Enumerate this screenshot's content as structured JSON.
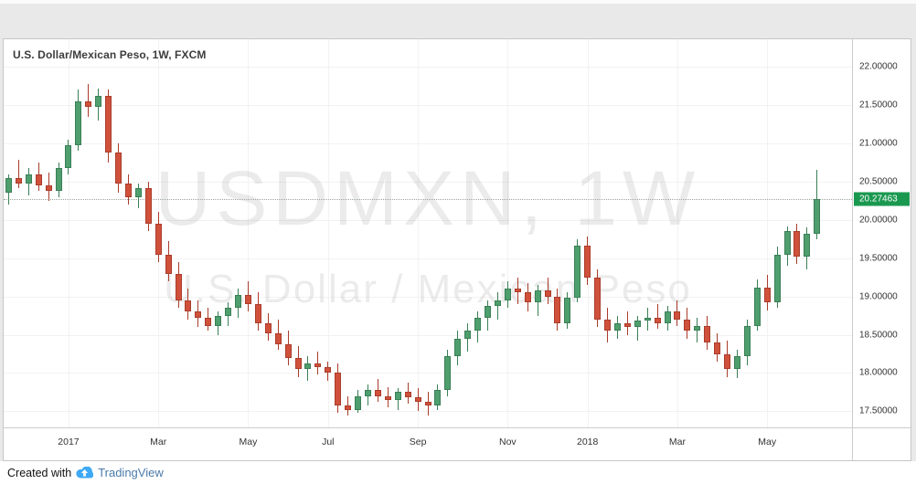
{
  "chart": {
    "title": "U.S. Dollar/Mexican Peso, 1W, FXCM",
    "watermark_line1": "USDMXN, 1W",
    "watermark_line2": "U.S. Dollar / Mexican Peso",
    "last_price_label": "20.27463",
    "colors": {
      "up": "#4f9e6e",
      "up_border": "#3a7f56",
      "down": "#d0513b",
      "down_border": "#a93c2b",
      "badge_bg": "#1a9850",
      "grid": "#f2f2f2",
      "axis_text": "#333333",
      "watermark": "rgba(0,0,0,0.08)"
    }
  },
  "chart_data": {
    "type": "candlestick",
    "symbol": "USDMXN",
    "timeframe": "1W",
    "exchange": "FXCM",
    "title": "U.S. Dollar/Mexican Peso, 1W, FXCM",
    "y_min": 17.29,
    "y_max": 22.36,
    "last_price": 20.27463,
    "slots": 85,
    "grid": true,
    "y_ticks": [
      {
        "label": "22.00000",
        "value": 22.0
      },
      {
        "label": "21.50000",
        "value": 21.5
      },
      {
        "label": "21.00000",
        "value": 21.0
      },
      {
        "label": "20.50000",
        "value": 20.5
      },
      {
        "label": "20.00000",
        "value": 20.0
      },
      {
        "label": "19.50000",
        "value": 19.5
      },
      {
        "label": "19.00000",
        "value": 19.0
      },
      {
        "label": "18.50000",
        "value": 18.5
      },
      {
        "label": "18.00000",
        "value": 18.0
      },
      {
        "label": "17.50000",
        "value": 17.5
      }
    ],
    "x_ticks": [
      {
        "label": "2017",
        "i": 6
      },
      {
        "label": "Mar",
        "i": 15
      },
      {
        "label": "May",
        "i": 24
      },
      {
        "label": "Jul",
        "i": 32
      },
      {
        "label": "Sep",
        "i": 41
      },
      {
        "label": "Nov",
        "i": 50
      },
      {
        "label": "2018",
        "i": 58
      },
      {
        "label": "Mar",
        "i": 67
      },
      {
        "label": "May",
        "i": 76
      }
    ],
    "candles": [
      [
        20.35,
        20.6,
        20.2,
        20.55
      ],
      [
        20.55,
        20.78,
        20.42,
        20.48
      ],
      [
        20.48,
        20.68,
        20.32,
        20.6
      ],
      [
        20.6,
        20.75,
        20.38,
        20.45
      ],
      [
        20.45,
        20.62,
        20.25,
        20.38
      ],
      [
        20.38,
        20.75,
        20.3,
        20.68
      ],
      [
        20.68,
        21.05,
        20.6,
        20.98
      ],
      [
        20.98,
        21.7,
        20.9,
        21.55
      ],
      [
        21.55,
        21.77,
        21.35,
        21.48
      ],
      [
        21.48,
        21.72,
        21.3,
        21.62
      ],
      [
        21.62,
        21.7,
        20.75,
        20.88
      ],
      [
        20.88,
        21.0,
        20.35,
        20.48
      ],
      [
        20.48,
        20.6,
        20.2,
        20.3
      ],
      [
        20.3,
        20.48,
        20.15,
        20.42
      ],
      [
        20.42,
        20.5,
        19.85,
        19.95
      ],
      [
        19.95,
        20.1,
        19.45,
        19.55
      ],
      [
        19.55,
        19.72,
        19.2,
        19.3
      ],
      [
        19.3,
        19.45,
        18.85,
        18.95
      ],
      [
        18.95,
        19.1,
        18.7,
        18.8
      ],
      [
        18.8,
        18.95,
        18.6,
        18.72
      ],
      [
        18.72,
        18.85,
        18.55,
        18.62
      ],
      [
        18.62,
        18.8,
        18.5,
        18.75
      ],
      [
        18.75,
        18.92,
        18.62,
        18.85
      ],
      [
        18.85,
        19.1,
        18.72,
        19.02
      ],
      [
        19.02,
        19.2,
        18.8,
        18.9
      ],
      [
        18.9,
        19.05,
        18.55,
        18.65
      ],
      [
        18.65,
        18.78,
        18.42,
        18.52
      ],
      [
        18.52,
        18.7,
        18.3,
        18.38
      ],
      [
        18.38,
        18.55,
        18.1,
        18.2
      ],
      [
        18.2,
        18.35,
        17.95,
        18.05
      ],
      [
        18.05,
        18.22,
        17.9,
        18.12
      ],
      [
        18.12,
        18.28,
        17.98,
        18.08
      ],
      [
        18.08,
        18.15,
        17.9,
        18.0
      ],
      [
        18.0,
        18.12,
        17.48,
        17.58
      ],
      [
        17.58,
        17.7,
        17.45,
        17.52
      ],
      [
        17.52,
        17.78,
        17.48,
        17.7
      ],
      [
        17.7,
        17.85,
        17.58,
        17.78
      ],
      [
        17.78,
        17.92,
        17.62,
        17.7
      ],
      [
        17.7,
        17.82,
        17.55,
        17.65
      ],
      [
        17.65,
        17.8,
        17.52,
        17.75
      ],
      [
        17.75,
        17.88,
        17.6,
        17.68
      ],
      [
        17.68,
        17.8,
        17.5,
        17.62
      ],
      [
        17.62,
        17.75,
        17.45,
        17.58
      ],
      [
        17.58,
        17.85,
        17.52,
        17.78
      ],
      [
        17.78,
        18.3,
        17.7,
        18.22
      ],
      [
        18.22,
        18.55,
        18.1,
        18.45
      ],
      [
        18.45,
        18.65,
        18.28,
        18.55
      ],
      [
        18.55,
        18.8,
        18.4,
        18.72
      ],
      [
        18.72,
        18.95,
        18.55,
        18.88
      ],
      [
        18.88,
        19.05,
        18.7,
        18.95
      ],
      [
        18.95,
        19.2,
        18.85,
        19.1
      ],
      [
        19.1,
        19.25,
        18.9,
        19.05
      ],
      [
        19.05,
        19.18,
        18.8,
        18.92
      ],
      [
        18.92,
        19.15,
        18.75,
        19.08
      ],
      [
        19.08,
        19.25,
        18.9,
        19.0
      ],
      [
        19.0,
        19.1,
        18.55,
        18.65
      ],
      [
        18.65,
        19.05,
        18.58,
        18.98
      ],
      [
        18.98,
        19.75,
        18.92,
        19.66
      ],
      [
        19.66,
        19.78,
        19.15,
        19.25
      ],
      [
        19.25,
        19.35,
        18.6,
        18.7
      ],
      [
        18.7,
        18.85,
        18.4,
        18.55
      ],
      [
        18.55,
        18.75,
        18.45,
        18.65
      ],
      [
        18.65,
        18.8,
        18.5,
        18.6
      ],
      [
        18.6,
        18.75,
        18.42,
        18.68
      ],
      [
        18.68,
        18.85,
        18.55,
        18.72
      ],
      [
        18.72,
        18.9,
        18.58,
        18.65
      ],
      [
        18.65,
        18.88,
        18.55,
        18.8
      ],
      [
        18.8,
        18.95,
        18.62,
        18.7
      ],
      [
        18.7,
        18.85,
        18.45,
        18.55
      ],
      [
        18.55,
        18.72,
        18.4,
        18.62
      ],
      [
        18.62,
        18.75,
        18.3,
        18.4
      ],
      [
        18.4,
        18.52,
        18.15,
        18.25
      ],
      [
        18.25,
        18.42,
        17.95,
        18.05
      ],
      [
        18.05,
        18.3,
        17.94,
        18.22
      ],
      [
        18.22,
        18.7,
        18.1,
        18.62
      ],
      [
        18.62,
        19.22,
        18.55,
        19.12
      ],
      [
        19.12,
        19.28,
        18.82,
        18.92
      ],
      [
        18.92,
        19.65,
        18.85,
        19.55
      ],
      [
        19.55,
        19.92,
        19.4,
        19.85
      ],
      [
        19.85,
        19.95,
        19.42,
        19.52
      ],
      [
        19.52,
        19.9,
        19.35,
        19.82
      ],
      [
        19.82,
        20.65,
        19.75,
        20.27463
      ]
    ]
  },
  "footer": {
    "created_with": "Created with",
    "brand": "TradingView",
    "logo_color": "#3fa9f5"
  }
}
